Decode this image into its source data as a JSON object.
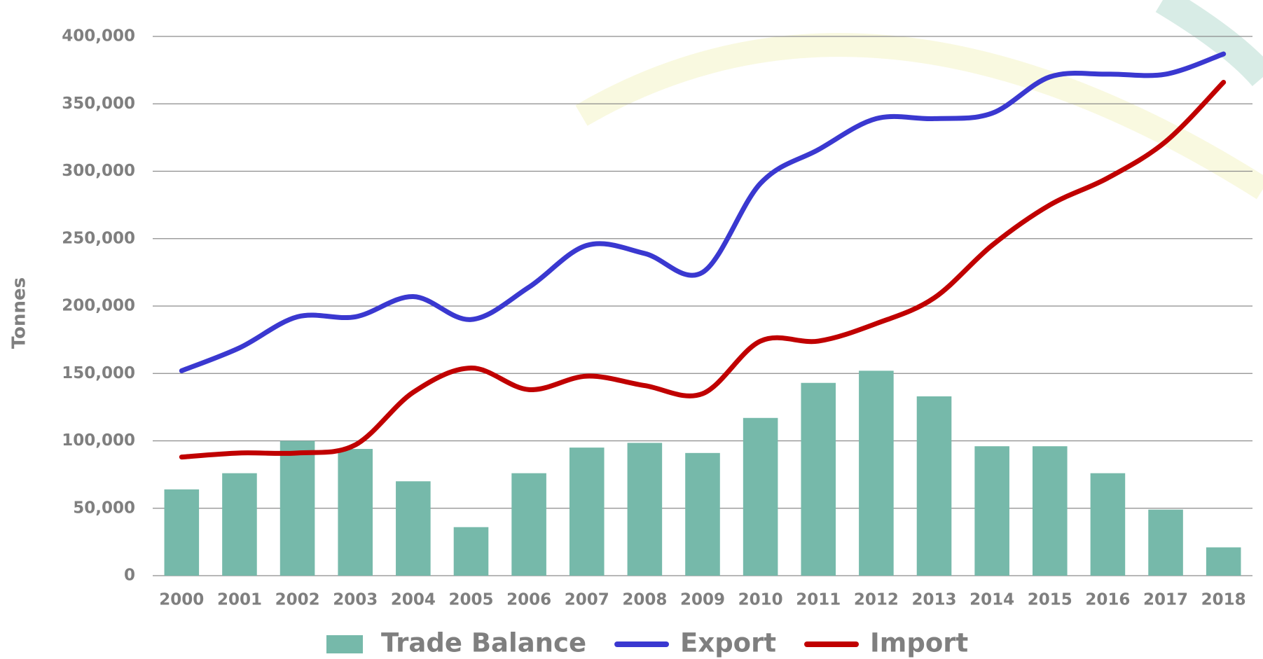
{
  "chart_data": {
    "type": "combo",
    "y_label": "Tonnes",
    "categories": [
      "2000",
      "2001",
      "2002",
      "2003",
      "2004",
      "2005",
      "2006",
      "2007",
      "2008",
      "2009",
      "2010",
      "2011",
      "2012",
      "2013",
      "2014",
      "2015",
      "2016",
      "2017",
      "2018"
    ],
    "series": [
      {
        "name": "Trade Balance",
        "type": "bar",
        "color": "#76b9aa",
        "values": [
          64000,
          76000,
          100000,
          94000,
          70000,
          36000,
          76000,
          95000,
          98500,
          91000,
          117000,
          143000,
          152000,
          133000,
          96000,
          96000,
          76000,
          49000,
          21000
        ]
      },
      {
        "name": "Export",
        "type": "line",
        "color": "#3a38d0",
        "values": [
          152000,
          169000,
          192000,
          192000,
          207000,
          190000,
          214000,
          245000,
          239000,
          225000,
          291000,
          316000,
          339000,
          339000,
          343000,
          370000,
          372000,
          372000,
          387000
        ]
      },
      {
        "name": "Import",
        "type": "line",
        "color": "#c00000",
        "values": [
          88000,
          91000,
          91000,
          97000,
          136000,
          154000,
          138000,
          148000,
          141000,
          135000,
          174000,
          174000,
          187000,
          206000,
          245000,
          275000,
          295000,
          322000,
          366000
        ]
      }
    ],
    "ylim": [
      0,
      400000
    ],
    "yticks": [
      0,
      {
        "value": 50000,
        "label": "50,000"
      },
      {
        "value": 100000,
        "label": "100,000"
      },
      {
        "value": 150000,
        "label": "150,000"
      },
      {
        "value": 200000,
        "label": "200,000"
      },
      {
        "value": 250000,
        "label": "250,000"
      },
      {
        "value": 300000,
        "label": "300,000"
      },
      {
        "value": 350000,
        "label": "350,000"
      },
      {
        "value": 400000,
        "label": "400,000"
      }
    ],
    "grid": true,
    "legend": "bottom"
  }
}
